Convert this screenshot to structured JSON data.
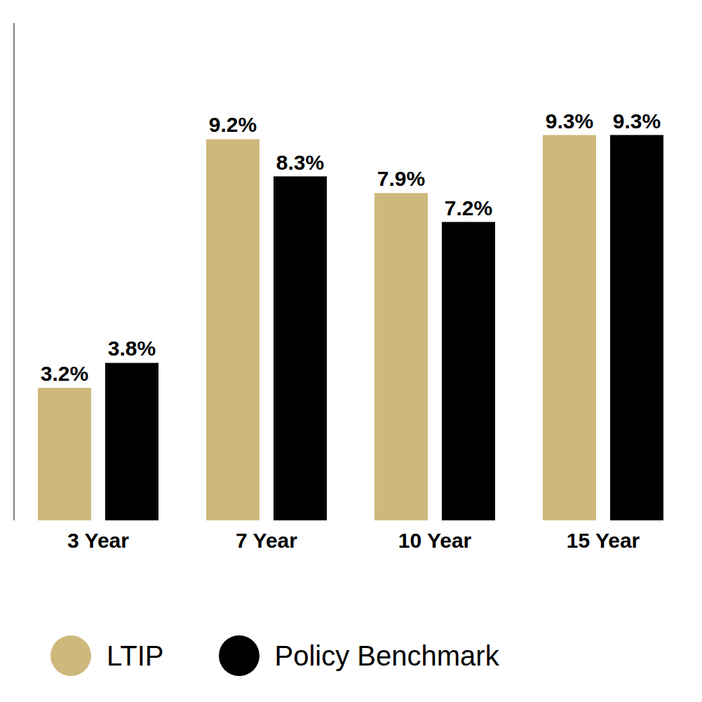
{
  "chart_data": {
    "type": "bar",
    "categories": [
      "3 Year",
      "7 Year",
      "10 Year",
      "15 Year"
    ],
    "series": [
      {
        "name": "LTIP",
        "color": "#ceb87c",
        "values": [
          3.2,
          9.2,
          7.9,
          9.3
        ],
        "value_labels": [
          "3.2%",
          "9.2%",
          "7.9%",
          "9.3%"
        ]
      },
      {
        "name": "Policy Benchmark",
        "color": "#000000",
        "values": [
          3.8,
          8.3,
          7.2,
          9.3
        ],
        "value_labels": [
          "3.8%",
          "8.3%",
          "7.2%",
          "9.3%"
        ]
      }
    ],
    "ylim": [
      0,
      12
    ],
    "data_labels": true,
    "tick_labels": "x",
    "legend": "bottom",
    "grid": false
  }
}
